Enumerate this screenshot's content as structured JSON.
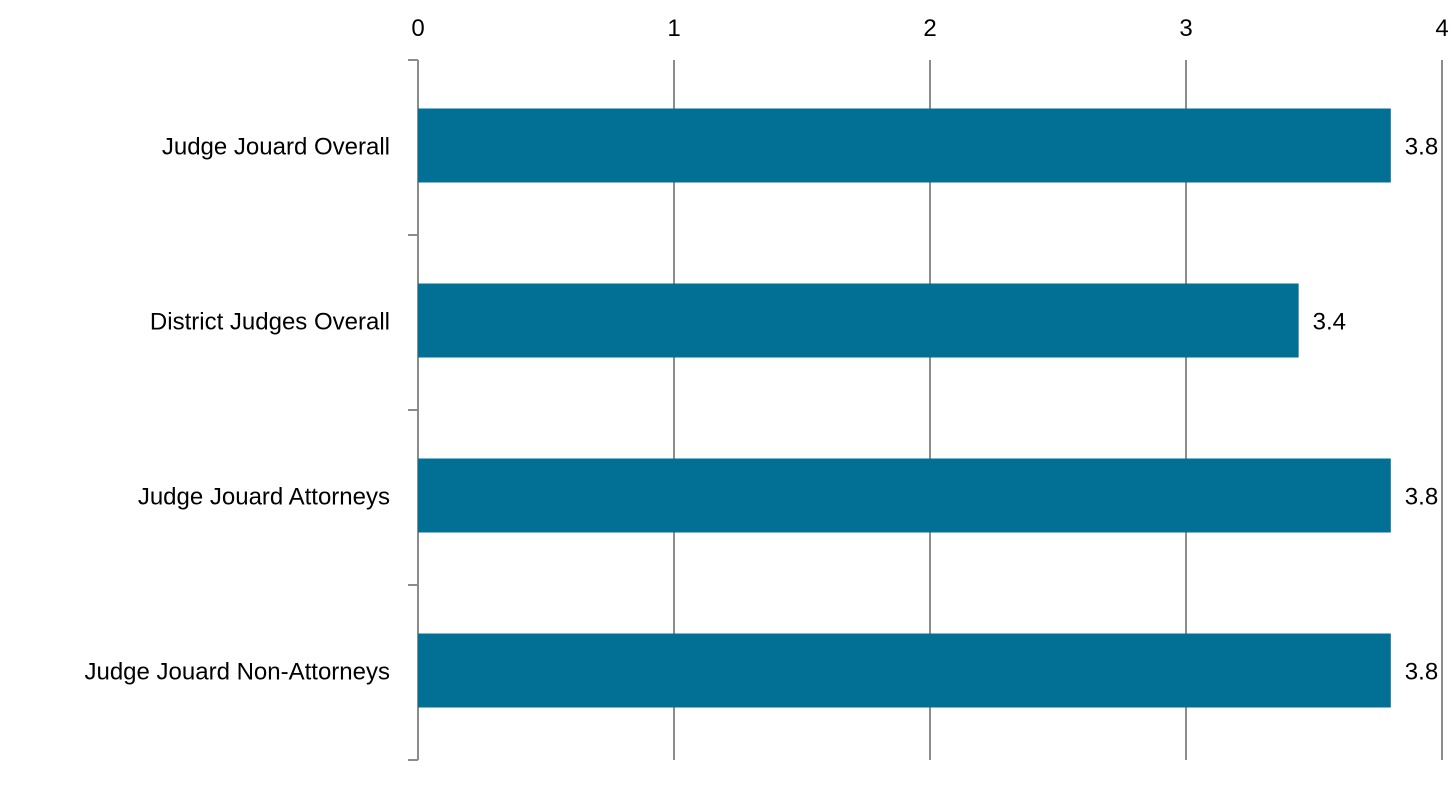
{
  "chart_data": {
    "type": "bar",
    "orientation": "horizontal",
    "categories": [
      "Judge Jouard  Overall",
      "District Judges Overall",
      "Judge Jouard  Attorneys",
      "Judge Jouard  Non-Attorneys"
    ],
    "values": [
      3.8,
      3.44,
      3.8,
      3.8
    ],
    "value_labels": [
      "3.8",
      "3.4",
      "3.8",
      "3.8"
    ],
    "xlim": [
      0,
      4
    ],
    "xticks": [
      0,
      1,
      2,
      3,
      4
    ],
    "xtick_labels": [
      "0",
      "1",
      "2",
      "3",
      "4"
    ],
    "x_axis_position": "top",
    "grid": true,
    "colors": {
      "bar": "#026f94",
      "grid": "#8c8c8c"
    }
  }
}
